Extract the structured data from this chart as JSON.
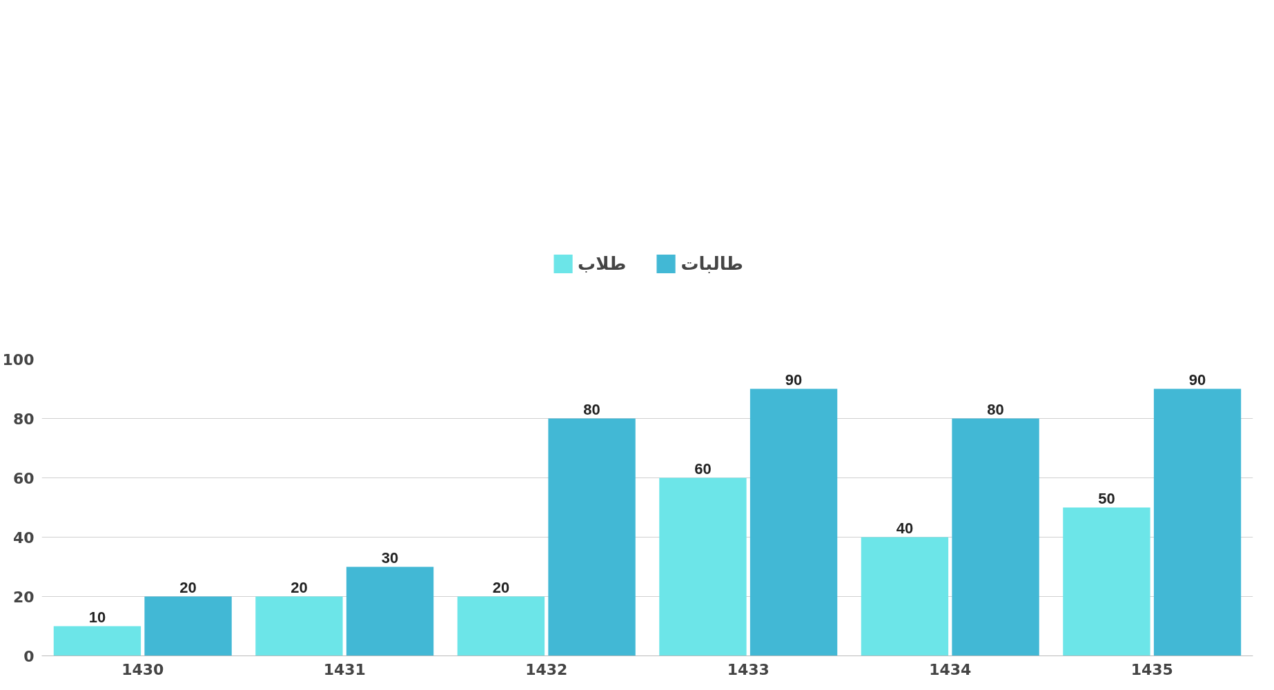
{
  "chart_data": {
    "type": "bar",
    "categories": [
      "1430",
      "1431",
      "1432",
      "1433",
      "1434",
      "1435"
    ],
    "series": [
      {
        "name": "طلاب",
        "color": "#6ce5e8",
        "values": [
          10,
          20,
          20,
          60,
          40,
          50
        ]
      },
      {
        "name": "طالبات",
        "color": "#42b8d5",
        "values": [
          20,
          30,
          80,
          90,
          80,
          90
        ]
      }
    ],
    "ylim": [
      0,
      100
    ],
    "yticks": [
      0,
      20,
      40,
      60,
      80,
      100
    ],
    "grid": "y",
    "legend": "top",
    "data_labels": true
  }
}
